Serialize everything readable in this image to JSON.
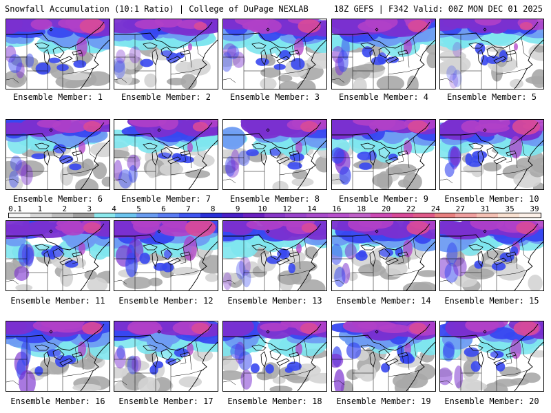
{
  "header": {
    "title_left": "Snowfall Accumulation (10:1 Ratio) | College of DuPage NEXLAB",
    "title_right": "18Z GEFS | F342 Valid: 00Z MON DEC 01 2025"
  },
  "panels": [
    {
      "label": "Ensemble Member: 1",
      "intensity": 0.8,
      "west": 0.45,
      "heavy_east": 0.8
    },
    {
      "label": "Ensemble Member: 2",
      "intensity": 0.5,
      "west": 0.3,
      "heavy_east": 0.3
    },
    {
      "label": "Ensemble Member: 3",
      "intensity": 0.75,
      "west": 0.4,
      "heavy_east": 0.7
    },
    {
      "label": "Ensemble Member: 4",
      "intensity": 0.8,
      "west": 0.5,
      "heavy_east": 0.6
    },
    {
      "label": "Ensemble Member: 5",
      "intensity": 0.3,
      "west": 0.2,
      "heavy_east": 0.3
    },
    {
      "label": "Ensemble Member: 6",
      "intensity": 0.6,
      "west": 0.4,
      "heavy_east": 0.5
    },
    {
      "label": "Ensemble Member: 7",
      "intensity": 0.6,
      "west": 0.45,
      "heavy_east": 0.4
    },
    {
      "label": "Ensemble Member: 8",
      "intensity": 0.7,
      "west": 0.4,
      "heavy_east": 0.5
    },
    {
      "label": "Ensemble Member: 9",
      "intensity": 0.9,
      "west": 0.7,
      "heavy_east": 0.6
    },
    {
      "label": "Ensemble Member: 10",
      "intensity": 0.95,
      "west": 0.6,
      "heavy_east": 0.9
    },
    {
      "label": "Ensemble Member: 11",
      "intensity": 0.85,
      "west": 0.6,
      "heavy_east": 0.5
    },
    {
      "label": "Ensemble Member: 12",
      "intensity": 1.0,
      "west": 0.7,
      "heavy_east": 1.0
    },
    {
      "label": "Ensemble Member: 13",
      "intensity": 0.6,
      "west": 0.3,
      "heavy_east": 0.4
    },
    {
      "label": "Ensemble Member: 14",
      "intensity": 0.8,
      "west": 0.5,
      "heavy_east": 0.7
    },
    {
      "label": "Ensemble Member: 15",
      "intensity": 0.8,
      "west": 0.5,
      "heavy_east": 0.6
    },
    {
      "label": "Ensemble Member: 16",
      "intensity": 0.85,
      "west": 0.65,
      "heavy_east": 0.6
    },
    {
      "label": "Ensemble Member: 17",
      "intensity": 0.7,
      "west": 0.45,
      "heavy_east": 0.5
    },
    {
      "label": "Ensemble Member: 18",
      "intensity": 0.7,
      "west": 0.5,
      "heavy_east": 0.5
    },
    {
      "label": "Ensemble Member: 19",
      "intensity": 0.8,
      "west": 0.7,
      "heavy_east": 0.5
    },
    {
      "label": "Ensemble Member: 20",
      "intensity": 0.8,
      "west": 0.5,
      "heavy_east": 0.8
    }
  ],
  "colorbar": {
    "labels": [
      "0.1",
      "1",
      "2",
      "3",
      "4",
      "5",
      "6",
      "7",
      "8",
      "9",
      "10",
      "12",
      "14",
      "16",
      "18",
      "20",
      "22",
      "24",
      "27",
      "31",
      "35",
      "39"
    ],
    "colors": [
      "#f4f4f4",
      "#d8d8d8",
      "#bebebe",
      "#a0a0a0",
      "#8ce8ec",
      "#6cc4ee",
      "#6a9cf0",
      "#5a7cf2",
      "#3f55f0",
      "#2a30d8",
      "#4a20c8",
      "#6a20c0",
      "#8838c8",
      "#9a44cc",
      "#aa4ccc",
      "#b850cc",
      "#c060c8",
      "#cc4ab4",
      "#d84a98",
      "#e05a8a",
      "#e88080",
      "#f0a0a0",
      "#f4c0b4",
      "#f8e0d0",
      "#fcf0e8"
    ]
  },
  "snow_colors": {
    "light_gray": "#d4d4d4",
    "mid_gray": "#a8a8a8",
    "cyan": "#7ee6ee",
    "light_blue": "#6e9cf2",
    "blue": "#3848f0",
    "purple": "#7a30d0",
    "magenta": "#b040c8",
    "pink": "#d84a98"
  }
}
